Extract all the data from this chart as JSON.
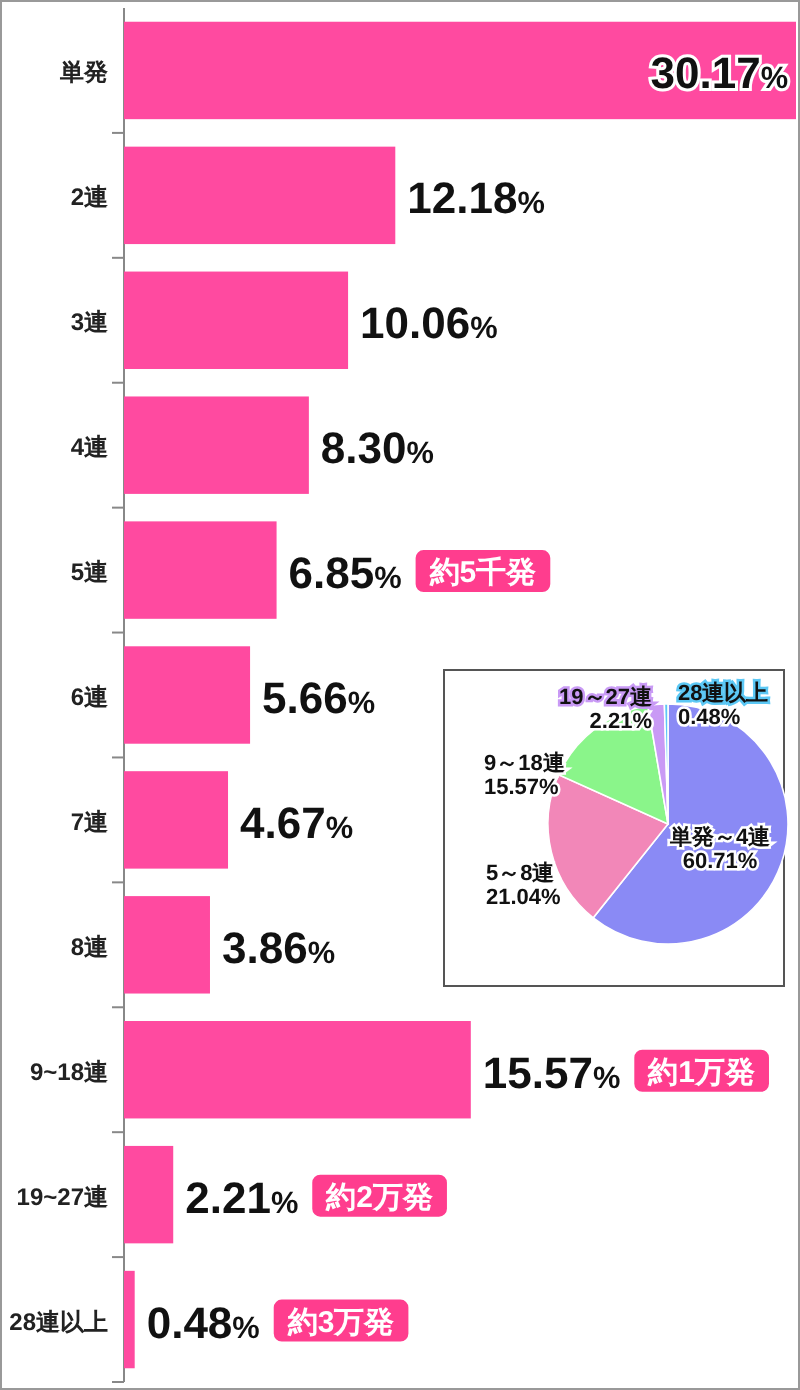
{
  "chart_data": [
    {
      "type": "bar",
      "orientation": "horizontal",
      "color": "#ff4aa0",
      "categories": [
        "単発",
        "2連",
        "3連",
        "4連",
        "5連",
        "6連",
        "7連",
        "8連",
        "9~18連",
        "19~27連",
        "28連以上"
      ],
      "values": [
        30.17,
        12.18,
        10.06,
        8.3,
        6.85,
        5.66,
        4.67,
        3.86,
        15.57,
        2.21,
        0.48
      ],
      "value_labels": [
        "30.17%",
        "12.18%",
        "10.06%",
        "8.30%",
        "6.85%",
        "5.66%",
        "4.67%",
        "3.86%",
        "15.57%",
        "2.21%",
        "0.48%"
      ],
      "annotations": [
        "約5千発",
        "約1万発",
        "約2万発",
        "約3万発"
      ]
    },
    {
      "type": "pie",
      "value_labels": [
        "60.71%",
        "21.04%",
        "15.57%",
        "2.21%",
        "0.48%"
      ],
      "categories": [
        "単発～4連",
        "5～8連",
        "9～18連",
        "19～27連",
        "28連以上"
      ],
      "values": [
        60.71,
        21.04,
        15.57,
        2.21,
        0.48
      ],
      "colors": [
        "#8a8af5",
        "#f287b8",
        "#8af58a",
        "#c99af5",
        "#5cc8f5"
      ]
    }
  ]
}
